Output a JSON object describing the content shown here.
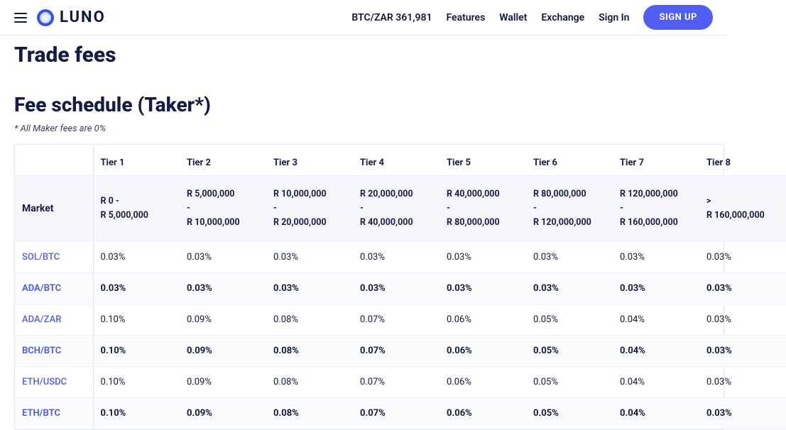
{
  "header": {
    "ticker": "BTC/ZAR 361,981",
    "nav": [
      "Features",
      "Wallet",
      "Exchange",
      "Sign In"
    ],
    "signup": "SIGN UP",
    "logo_text": "LUNO"
  },
  "page": {
    "title": "Trade fees",
    "subtitle": "Fee schedule (Taker*)",
    "maker_note": "* All Maker fees are 0%"
  },
  "colors": {
    "accent": "#4f5ef0",
    "text": "#0f1a3a",
    "border": "#e5e7ef",
    "row_alt": "#f4f6fb",
    "link": "#4f5ef0"
  },
  "table": {
    "market_header": "Market",
    "tiers": [
      "Tier 1",
      "Tier 2",
      "Tier 3",
      "Tier 4",
      "Tier 5",
      "Tier 6",
      "Tier 7",
      "Tier 8"
    ],
    "ranges": [
      "R 0 -\nR 5,000,000",
      "R 5,000,000\n-\nR 10,000,000",
      "R 10,000,000\n-\nR 20,000,000",
      "R 20,000,000\n-\nR 40,000,000",
      "R 40,000,000\n-\nR 80,000,000",
      "R 80,000,000\n-\nR 120,000,000",
      "R 120,000,000\n-\nR 160,000,000",
      ">\nR 160,000,000"
    ],
    "rows": [
      {
        "market": "SOL/BTC",
        "bold": false,
        "values": [
          "0.03%",
          "0.03%",
          "0.03%",
          "0.03%",
          "0.03%",
          "0.03%",
          "0.03%",
          "0.03%"
        ]
      },
      {
        "market": "ADA/BTC",
        "bold": true,
        "values": [
          "0.03%",
          "0.03%",
          "0.03%",
          "0.03%",
          "0.03%",
          "0.03%",
          "0.03%",
          "0.03%"
        ]
      },
      {
        "market": "ADA/ZAR",
        "bold": false,
        "values": [
          "0.10%",
          "0.09%",
          "0.08%",
          "0.07%",
          "0.06%",
          "0.05%",
          "0.04%",
          "0.03%"
        ]
      },
      {
        "market": "BCH/BTC",
        "bold": true,
        "values": [
          "0.10%",
          "0.09%",
          "0.08%",
          "0.07%",
          "0.06%",
          "0.05%",
          "0.04%",
          "0.03%"
        ]
      },
      {
        "market": "ETH/USDC",
        "bold": false,
        "values": [
          "0.10%",
          "0.09%",
          "0.08%",
          "0.07%",
          "0.06%",
          "0.05%",
          "0.04%",
          "0.03%"
        ]
      },
      {
        "market": "ETH/BTC",
        "bold": true,
        "values": [
          "0.10%",
          "0.09%",
          "0.08%",
          "0.07%",
          "0.06%",
          "0.05%",
          "0.04%",
          "0.03%"
        ]
      }
    ]
  }
}
